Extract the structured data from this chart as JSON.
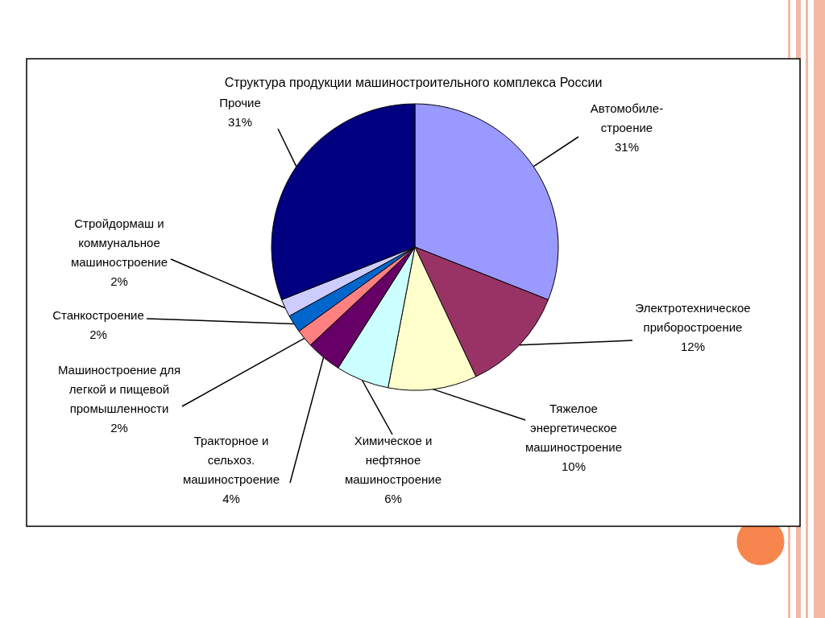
{
  "chart_data": {
    "type": "pie",
    "title": "Структура продукции машиностроительного комплекса России",
    "categories": [
      "Автомобиле-\nстроение",
      "Электротехническое\nприборостроение",
      "Тяжелое\nэнергетическое\nмашиностроение",
      "Химическое и\nнефтяное\nмашиностроение",
      "Тракторное и\nсельхоз.\nмашиностроение",
      "Машиностроение для\nлегкой и пищевой\nпромышленности",
      "Станкостроение",
      "Стройдормаш и\nкоммунальное\nмашиностроение",
      "Прочие"
    ],
    "values": [
      31,
      12,
      10,
      6,
      4,
      2,
      2,
      2,
      31
    ],
    "colors": [
      "#9999ff",
      "#993366",
      "#ffffcc",
      "#ccffff",
      "#660066",
      "#ff8080",
      "#0066cc",
      "#ccccff",
      "#000080"
    ],
    "value_labels": [
      "31%",
      "12%",
      "10%",
      "6%",
      "4%",
      "2%",
      "2%",
      "2%",
      "31%"
    ]
  }
}
